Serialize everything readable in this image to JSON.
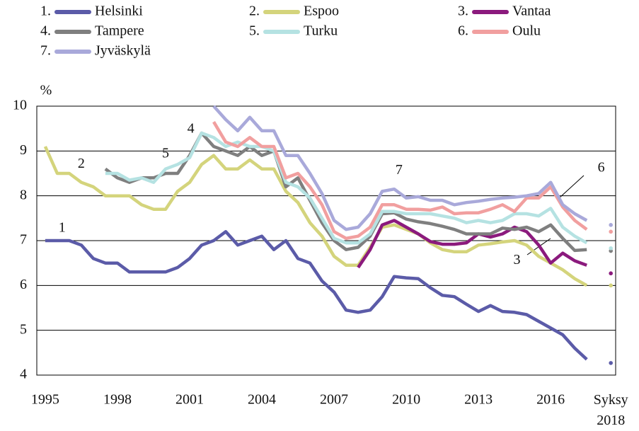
{
  "chart_data": {
    "type": "line",
    "y_label": "%",
    "x": [
      1995,
      1995.5,
      1996,
      1996.5,
      1997,
      1997.5,
      1998,
      1998.5,
      1999,
      1999.5,
      2000,
      2000.5,
      2001,
      2001.5,
      2002,
      2002.5,
      2003,
      2003.5,
      2004,
      2004.5,
      2005,
      2005.5,
      2006,
      2006.5,
      2007,
      2007.5,
      2008,
      2008.5,
      2009,
      2009.5,
      2010,
      2010.5,
      2011,
      2011.5,
      2012,
      2012.5,
      2013,
      2013.5,
      2014,
      2014.5,
      2015,
      2015.5,
      2016,
      2016.5,
      2017,
      2017.5,
      2018,
      2018.5
    ],
    "series": [
      {
        "name": "Helsinki",
        "number": "1.",
        "color": "#5b5ba8",
        "values": [
          7.0,
          7.0,
          7.0,
          6.9,
          6.6,
          6.5,
          6.5,
          6.3,
          6.3,
          6.3,
          6.3,
          6.4,
          6.6,
          6.9,
          7.0,
          7.2,
          6.9,
          7.0,
          7.1,
          6.8,
          7.0,
          6.6,
          6.5,
          6.1,
          5.85,
          5.45,
          5.4,
          5.45,
          5.75,
          6.2,
          6.17,
          6.15,
          5.95,
          5.78,
          5.75,
          5.58,
          5.42,
          5.55,
          5.42,
          5.4,
          5.35,
          5.2,
          5.05,
          4.9,
          4.6,
          4.35,
          null,
          4.27
        ]
      },
      {
        "name": "Espoo",
        "number": "2.",
        "color": "#d4d47c",
        "values": [
          9.1,
          8.5,
          8.5,
          8.3,
          8.2,
          8.0,
          8.0,
          8.0,
          7.8,
          7.7,
          7.7,
          8.1,
          8.3,
          8.7,
          8.9,
          8.6,
          8.6,
          8.8,
          8.6,
          8.6,
          8.1,
          7.85,
          7.4,
          7.1,
          6.65,
          6.45,
          6.45,
          6.85,
          7.3,
          7.35,
          7.25,
          7.15,
          6.95,
          6.8,
          6.75,
          6.75,
          6.9,
          6.93,
          6.97,
          7.0,
          6.9,
          6.65,
          6.5,
          6.35,
          6.15,
          6.0,
          null,
          6.0
        ]
      },
      {
        "name": "Vantaa",
        "number": "3.",
        "color": "#8b1a7d",
        "values": [
          null,
          null,
          null,
          null,
          null,
          null,
          null,
          null,
          null,
          null,
          null,
          null,
          null,
          null,
          null,
          null,
          null,
          null,
          null,
          null,
          null,
          null,
          null,
          null,
          null,
          null,
          6.4,
          6.8,
          7.35,
          7.45,
          7.3,
          7.15,
          6.98,
          6.92,
          6.92,
          6.95,
          7.15,
          7.08,
          7.15,
          7.3,
          7.2,
          6.9,
          6.5,
          6.72,
          6.55,
          6.45,
          null,
          6.27
        ]
      },
      {
        "name": "Tampere",
        "number": "4.",
        "color": "#7f7f7f",
        "values": [
          null,
          null,
          null,
          null,
          null,
          8.6,
          8.4,
          8.3,
          8.4,
          8.4,
          8.5,
          8.5,
          8.9,
          9.4,
          9.1,
          9.0,
          8.9,
          9.1,
          8.9,
          9.0,
          8.2,
          8.4,
          7.9,
          7.4,
          7.0,
          6.8,
          6.85,
          7.1,
          7.6,
          7.62,
          7.48,
          7.42,
          7.38,
          7.32,
          7.25,
          7.15,
          7.15,
          7.15,
          7.28,
          7.25,
          7.3,
          7.2,
          7.35,
          7.05,
          6.78,
          6.8,
          null,
          6.77
        ]
      },
      {
        "name": "Turku",
        "number": "5.",
        "color": "#b5e2e2",
        "values": [
          null,
          null,
          null,
          null,
          null,
          8.5,
          8.5,
          8.35,
          8.4,
          8.3,
          8.6,
          8.7,
          8.85,
          9.4,
          9.3,
          9.1,
          9.2,
          9.1,
          9.1,
          9.0,
          8.3,
          8.2,
          7.95,
          7.5,
          7.05,
          6.95,
          6.95,
          7.15,
          7.65,
          7.65,
          7.6,
          7.6,
          7.6,
          7.55,
          7.5,
          7.4,
          7.45,
          7.4,
          7.45,
          7.6,
          7.6,
          7.55,
          7.72,
          7.3,
          7.1,
          6.95,
          null,
          6.83
        ]
      },
      {
        "name": "Oulu",
        "number": "6.",
        "color": "#f19f9f",
        "values": [
          null,
          null,
          null,
          null,
          null,
          null,
          null,
          null,
          null,
          null,
          null,
          null,
          null,
          null,
          9.65,
          9.2,
          9.1,
          9.3,
          9.1,
          9.1,
          8.4,
          8.5,
          8.2,
          7.8,
          7.2,
          7.05,
          7.1,
          7.3,
          7.8,
          7.8,
          7.7,
          7.7,
          7.68,
          7.75,
          7.6,
          7.62,
          7.62,
          7.7,
          7.8,
          7.65,
          7.95,
          7.95,
          8.2,
          7.75,
          7.45,
          7.25,
          null,
          7.2
        ]
      },
      {
        "name": "Jyväskylä",
        "number": "7.",
        "color": "#a9a9da",
        "values": [
          null,
          null,
          null,
          null,
          null,
          null,
          null,
          null,
          null,
          null,
          null,
          null,
          null,
          null,
          10.0,
          9.7,
          9.45,
          9.75,
          9.45,
          9.45,
          8.9,
          8.9,
          8.5,
          8.05,
          7.45,
          7.25,
          7.3,
          7.6,
          8.1,
          8.15,
          7.95,
          7.98,
          7.9,
          7.9,
          7.8,
          7.85,
          7.88,
          7.92,
          7.95,
          7.97,
          8.0,
          8.05,
          8.3,
          7.8,
          7.6,
          7.45,
          null,
          7.35
        ]
      }
    ],
    "annotations": [
      {
        "text": "1",
        "x": 1995.7,
        "y": 7.27
      },
      {
        "text": "2",
        "x": 1996.5,
        "y": 8.7
      },
      {
        "text": "3",
        "x": 2014.6,
        "y": 6.55
      },
      {
        "text": "4",
        "x": 2001.05,
        "y": 9.48
      },
      {
        "text": "5",
        "x": 2000.0,
        "y": 8.93
      },
      {
        "text": "6",
        "x": 2018.1,
        "y": 8.61
      },
      {
        "text": "7",
        "x": 2009.7,
        "y": 8.56
      }
    ],
    "xlim": [
      1994.65,
      2018.7
    ],
    "xticks": [
      1995,
      1998,
      2001,
      2004,
      2007,
      2010,
      2013,
      2016,
      {
        "value": 2018.5,
        "label": "Syksy 2018"
      }
    ],
    "ylim": [
      4,
      10
    ],
    "yticks": [
      4,
      5,
      6,
      7,
      8,
      9,
      10
    ],
    "grid": true
  }
}
